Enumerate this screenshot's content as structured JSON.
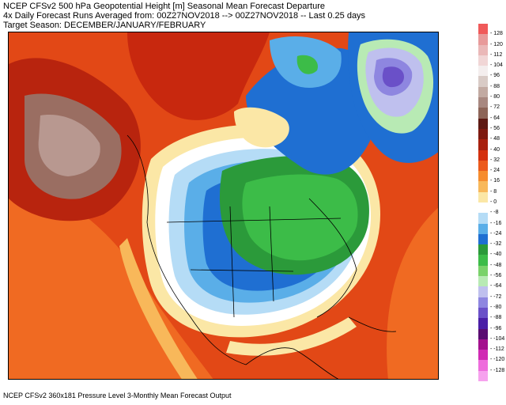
{
  "header": {
    "line1": "NCEP CFSv2 500 hPa Geopotential Height [m] Seasonal Mean Forecast Departure",
    "line2": "4x Daily Forecast Runs Averaged from: 00Z27NOV2018 --> 00Z27NOV2018 -- Last 0.25 days",
    "line3": "Target Season: DECEMBER/JANUARY/FEBRUARY"
  },
  "footer": "NCEP CFSv2 360x181 Pressure Level 3-Monthly Mean Forecast Output",
  "colorbar": {
    "levels": [
      {
        "label": "128",
        "color": "#f05a5a"
      },
      {
        "label": "120",
        "color": "#e89a9a"
      },
      {
        "label": "112",
        "color": "#eab8b8"
      },
      {
        "label": "104",
        "color": "#f1d6d6"
      },
      {
        "label": "96",
        "color": "#f4eeee"
      },
      {
        "label": "88",
        "color": "#d9cbc6"
      },
      {
        "label": "80",
        "color": "#c2aaa2"
      },
      {
        "label": "72",
        "color": "#a88880"
      },
      {
        "label": "64",
        "color": "#8d6558"
      },
      {
        "label": "56",
        "color": "#5e1a14"
      },
      {
        "label": "48",
        "color": "#7e1a10"
      },
      {
        "label": "40",
        "color": "#a8200e"
      },
      {
        "label": "32",
        "color": "#d4300e"
      },
      {
        "label": "24",
        "color": "#ec5a1c"
      },
      {
        "label": "16",
        "color": "#f68c2e"
      },
      {
        "label": "8",
        "color": "#f8b85a"
      },
      {
        "label": "0",
        "color": "#fbe7a6"
      },
      {
        "label": "-8",
        "color": "#ffffff"
      },
      {
        "label": "-16",
        "color": "#b5dcf6"
      },
      {
        "label": "-24",
        "color": "#5aaee8"
      },
      {
        "label": "-32",
        "color": "#1f6fd2"
      },
      {
        "label": "-40",
        "color": "#2b9a3a"
      },
      {
        "label": "-48",
        "color": "#3cbc48"
      },
      {
        "label": "-56",
        "color": "#7ad26a"
      },
      {
        "label": "-64",
        "color": "#b8eab4"
      },
      {
        "label": "-72",
        "color": "#bfc0ee"
      },
      {
        "label": "-80",
        "color": "#8e86e0"
      },
      {
        "label": "-88",
        "color": "#6a50c8"
      },
      {
        "label": "-96",
        "color": "#4a1ea6"
      },
      {
        "label": "-104",
        "color": "#5a0c72"
      },
      {
        "label": "-112",
        "color": "#a4108e"
      },
      {
        "label": "-120",
        "color": "#d02ab4"
      },
      {
        "label": "-128",
        "color": "#ee6cdc"
      },
      {
        "label": "",
        "color": "#f6a2ee"
      }
    ]
  },
  "colors": {
    "warm_core": "#d4300e",
    "very_warm": "#a8200e",
    "brown_high": "#8d6558",
    "cold_green": "#3cbc48",
    "cold_purple": "#6a50c8",
    "blue": "#1f6fd2"
  }
}
